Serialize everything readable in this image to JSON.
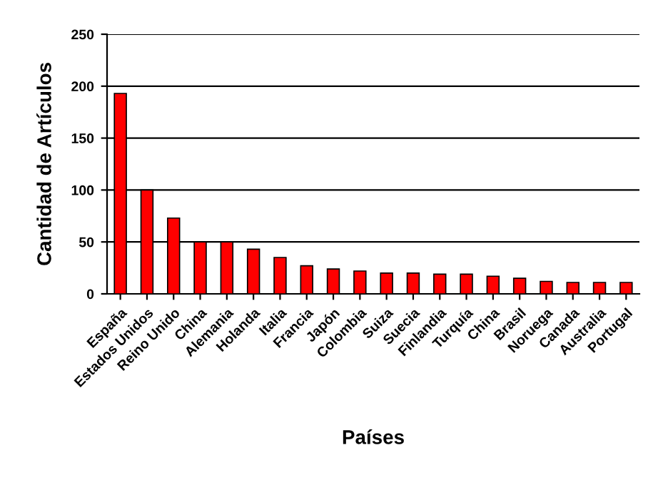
{
  "chart_data": {
    "type": "bar",
    "xlabel": "Países",
    "ylabel": "Cantidad de Artículos",
    "categories": [
      "España",
      "Estados Unidos",
      "Reino Unido",
      "China",
      "Alemania",
      "Holanda",
      "Italia",
      "Francia",
      "Japón",
      "Colombia",
      "Suiza",
      "Suecia",
      "Finlandia",
      "Turquía",
      "China",
      "Brasil",
      "Noruega",
      "Canada",
      "Australia",
      "Portugal"
    ],
    "values": [
      193,
      100,
      73,
      50,
      50,
      43,
      35,
      27,
      24,
      22,
      20,
      20,
      19,
      19,
      17,
      15,
      12,
      11,
      11,
      11
    ],
    "color": "#ff0000",
    "ylim": [
      0,
      250
    ],
    "yticks": [
      0,
      50,
      100,
      150,
      200,
      250
    ],
    "grid": "y",
    "legend": false
  }
}
